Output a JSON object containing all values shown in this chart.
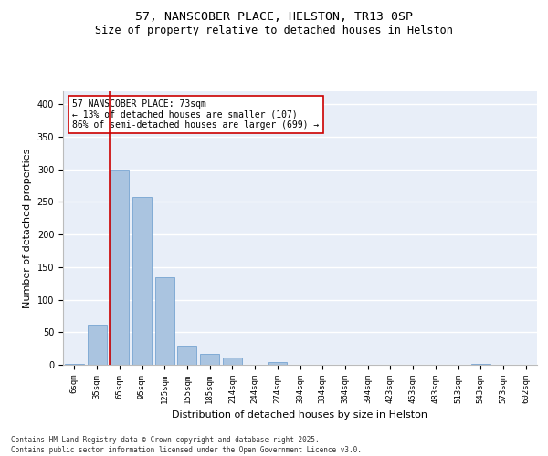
{
  "title_line1": "57, NANSCOBER PLACE, HELSTON, TR13 0SP",
  "title_line2": "Size of property relative to detached houses in Helston",
  "xlabel": "Distribution of detached houses by size in Helston",
  "ylabel": "Number of detached properties",
  "categories": [
    "6sqm",
    "35sqm",
    "65sqm",
    "95sqm",
    "125sqm",
    "155sqm",
    "185sqm",
    "214sqm",
    "244sqm",
    "274sqm",
    "304sqm",
    "334sqm",
    "364sqm",
    "394sqm",
    "423sqm",
    "453sqm",
    "483sqm",
    "513sqm",
    "543sqm",
    "573sqm",
    "602sqm"
  ],
  "values": [
    2,
    62,
    300,
    258,
    135,
    30,
    17,
    11,
    0,
    4,
    0,
    0,
    0,
    0,
    0,
    0,
    0,
    0,
    2,
    0,
    0
  ],
  "bar_color": "#aac4e0",
  "bar_edge_color": "#6699cc",
  "background_color": "#e8eef8",
  "grid_color": "#ffffff",
  "vline_color": "#cc0000",
  "annotation_text": "57 NANSCOBER PLACE: 73sqm\n← 13% of detached houses are smaller (107)\n86% of semi-detached houses are larger (699) →",
  "annotation_box_color": "#cc0000",
  "ylim": [
    0,
    420
  ],
  "yticks": [
    0,
    50,
    100,
    150,
    200,
    250,
    300,
    350,
    400
  ],
  "footnote": "Contains HM Land Registry data © Crown copyright and database right 2025.\nContains public sector information licensed under the Open Government Licence v3.0.",
  "title_fontsize": 9.5,
  "subtitle_fontsize": 8.5,
  "tick_fontsize": 6.5,
  "ylabel_fontsize": 8,
  "xlabel_fontsize": 8,
  "annot_fontsize": 7
}
